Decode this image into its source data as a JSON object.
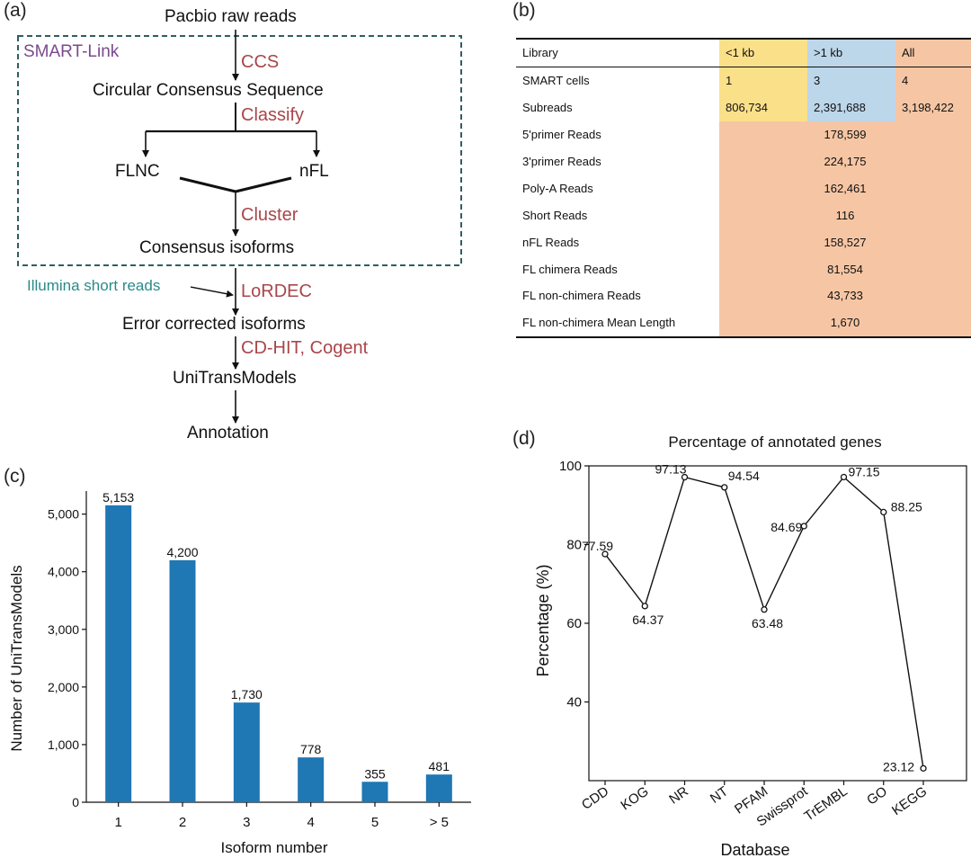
{
  "panels": {
    "a": "(a)",
    "b": "(b)",
    "c": "(c)",
    "d": "(d)"
  },
  "flow": {
    "box_label": "SMART-Link",
    "nodes": {
      "raw": "Pacbio raw reads",
      "ccs_seq": "Circular Consensus Sequence",
      "flnc": "FLNC",
      "nfl": "nFL",
      "consensus": "Consensus isoforms",
      "illumina": "Illumina short reads",
      "corrected": "Error corrected isoforms",
      "unitrans": "UniTransModels",
      "annotation": "Annotation"
    },
    "processes": {
      "ccs": "CCS",
      "classify": "Classify",
      "cluster": "Cluster",
      "lordec": "LoRDEC",
      "cdhit": "CD-HIT, Cogent"
    },
    "colors": {
      "smart_link": "#7a4a8e",
      "process": "#a8464a",
      "illumina": "#2b8a8a",
      "box_border": "#2f5f5f"
    }
  },
  "table": {
    "header": [
      "Library",
      "<1 kb",
      ">1 kb",
      "All"
    ],
    "rows_split": [
      {
        "label": "SMART cells",
        "lt1": "1",
        "gt1": "3",
        "all": "4"
      },
      {
        "label": "Subreads",
        "lt1": "806,734",
        "gt1": "2,391,688",
        "all": "3,198,422"
      }
    ],
    "rows_merged": [
      {
        "label": "5'primer Reads",
        "value": "178,599"
      },
      {
        "label": "3'primer Reads",
        "value": "224,175"
      },
      {
        "label": "Poly-A Reads",
        "value": "162,461"
      },
      {
        "label": "Short Reads",
        "value": "116"
      },
      {
        "label": "nFL Reads",
        "value": "158,527"
      },
      {
        "label": "FL chimera Reads",
        "value": "81,554"
      },
      {
        "label": "FL non-chimera Reads",
        "value": "43,733"
      },
      {
        "label": "FL non-chimera Mean Length",
        "value": "1,670"
      }
    ],
    "colors": {
      "lt1": "#fbe08a",
      "gt1": "#bcd6ea",
      "all": "#f6c6a4"
    }
  },
  "chart_data": [
    {
      "type": "bar",
      "title": "",
      "xlabel": "Isoform number",
      "ylabel": "Number of UniTransModels",
      "categories": [
        "1",
        "2",
        "3",
        "4",
        "5",
        "> 5"
      ],
      "values": [
        5153,
        4200,
        1730,
        778,
        355,
        481
      ],
      "value_labels": [
        "5,153",
        "4,200",
        "1,730",
        "778",
        "355",
        "481"
      ],
      "ylim": [
        0,
        5400
      ],
      "yticks": [
        0,
        1000,
        2000,
        3000,
        4000,
        5000
      ],
      "ytick_labels": [
        "0",
        "1,000",
        "2,000",
        "3,000",
        "4,000",
        "5,000"
      ],
      "bar_color": "#1f77b4"
    },
    {
      "type": "line",
      "title": "Percentage of annotated genes",
      "xlabel": "Database",
      "ylabel": "Percentage (%)",
      "categories": [
        "CDD",
        "KOG",
        "NR",
        "NT",
        "PFAM",
        "Swissprot",
        "TrEMBL",
        "GO",
        "KEGG"
      ],
      "values": [
        77.59,
        64.37,
        97.13,
        94.54,
        63.48,
        84.69,
        97.15,
        88.25,
        23.12
      ],
      "value_labels": [
        "77.59",
        "64.37",
        "97.13",
        "94.54",
        "63.48",
        "84.69",
        "97.15",
        "88.25",
        "23.12"
      ],
      "ylim": [
        20,
        100
      ],
      "yticks": [
        40,
        60,
        80,
        100
      ],
      "ytick_labels": [
        "40",
        "60",
        "80",
        "100"
      ]
    }
  ]
}
